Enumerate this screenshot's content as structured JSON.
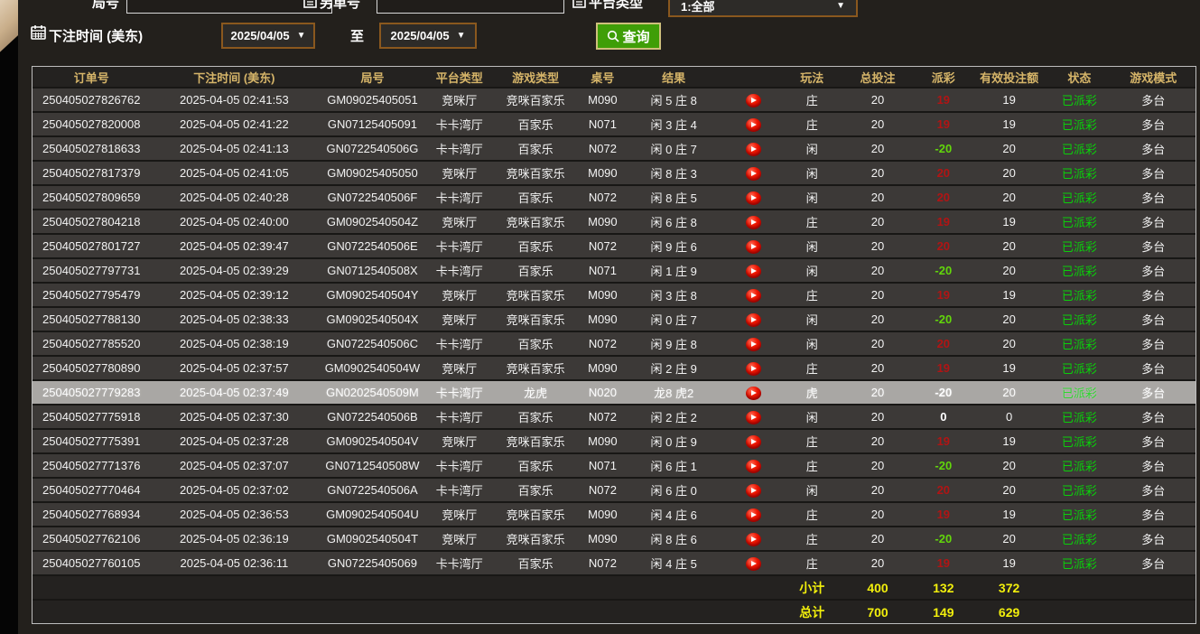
{
  "filters": {
    "round_label": "局号",
    "round_value": "",
    "order_label": "另单号",
    "order_value": "",
    "platform_label": "平台类型",
    "platform_value": "1:全部",
    "time_label": "下注时间 (美东)",
    "date_from": "2025/04/05",
    "to_label": "至",
    "date_to": "2025/04/05",
    "search_label": "查询"
  },
  "colors": {
    "header_text": "#d6b569",
    "payout_win_red": "#b11414",
    "payout_lose_green": "#62d60b",
    "status_green": "#0ad00a",
    "summary_yellow": "#f2ef0c",
    "search_button_green": "#3f9e07",
    "select_border_brown": "#8a581e",
    "highlight_row_gray": "#a9a7a4"
  },
  "table": {
    "headers": [
      "订单号",
      "下注时间 (美东)",
      "局号",
      "平台类型",
      "游戏类型",
      "桌号",
      "结果",
      "",
      "玩法",
      "总投注",
      "派彩",
      "有效投注额",
      "状态",
      "游戏模式"
    ],
    "rows": [
      {
        "order": "250405027826762",
        "time": "2025-04-05 02:41:53",
        "round": "GM09025405051",
        "hall": "竞咪厅",
        "game": "竞咪百家乐",
        "table": "M090",
        "result": "闲 5 庄 8",
        "bet": "庄",
        "total": "20",
        "payout": "19",
        "payout_color": "red",
        "valid": "19",
        "status": "已派彩",
        "mode": "多台",
        "highlight": false
      },
      {
        "order": "250405027820008",
        "time": "2025-04-05 02:41:22",
        "round": "GN07125405091",
        "hall": "卡卡湾厅",
        "game": "百家乐",
        "table": "N071",
        "result": "闲 3 庄 4",
        "bet": "庄",
        "total": "20",
        "payout": "19",
        "payout_color": "red",
        "valid": "19",
        "status": "已派彩",
        "mode": "多台",
        "highlight": false
      },
      {
        "order": "250405027818633",
        "time": "2025-04-05 02:41:13",
        "round": "GN0722540506G",
        "hall": "卡卡湾厅",
        "game": "百家乐",
        "table": "N072",
        "result": "闲 0 庄 7",
        "bet": "闲",
        "total": "20",
        "payout": "-20",
        "payout_color": "green",
        "valid": "20",
        "status": "已派彩",
        "mode": "多台",
        "highlight": false
      },
      {
        "order": "250405027817379",
        "time": "2025-04-05 02:41:05",
        "round": "GM09025405050",
        "hall": "竞咪厅",
        "game": "竞咪百家乐",
        "table": "M090",
        "result": "闲 8 庄 3",
        "bet": "闲",
        "total": "20",
        "payout": "20",
        "payout_color": "red",
        "valid": "20",
        "status": "已派彩",
        "mode": "多台",
        "highlight": false
      },
      {
        "order": "250405027809659",
        "time": "2025-04-05 02:40:28",
        "round": "GN0722540506F",
        "hall": "卡卡湾厅",
        "game": "百家乐",
        "table": "N072",
        "result": "闲 8 庄 5",
        "bet": "闲",
        "total": "20",
        "payout": "20",
        "payout_color": "red",
        "valid": "20",
        "status": "已派彩",
        "mode": "多台",
        "highlight": false
      },
      {
        "order": "250405027804218",
        "time": "2025-04-05 02:40:00",
        "round": "GM0902540504Z",
        "hall": "竞咪厅",
        "game": "竞咪百家乐",
        "table": "M090",
        "result": "闲 6 庄 8",
        "bet": "庄",
        "total": "20",
        "payout": "19",
        "payout_color": "red",
        "valid": "19",
        "status": "已派彩",
        "mode": "多台",
        "highlight": false
      },
      {
        "order": "250405027801727",
        "time": "2025-04-05 02:39:47",
        "round": "GN0722540506E",
        "hall": "卡卡湾厅",
        "game": "百家乐",
        "table": "N072",
        "result": "闲 9 庄 6",
        "bet": "闲",
        "total": "20",
        "payout": "20",
        "payout_color": "red",
        "valid": "20",
        "status": "已派彩",
        "mode": "多台",
        "highlight": false
      },
      {
        "order": "250405027797731",
        "time": "2025-04-05 02:39:29",
        "round": "GN0712540508X",
        "hall": "卡卡湾厅",
        "game": "百家乐",
        "table": "N071",
        "result": "闲 1 庄 9",
        "bet": "闲",
        "total": "20",
        "payout": "-20",
        "payout_color": "green",
        "valid": "20",
        "status": "已派彩",
        "mode": "多台",
        "highlight": false
      },
      {
        "order": "250405027795479",
        "time": "2025-04-05 02:39:12",
        "round": "GM0902540504Y",
        "hall": "竞咪厅",
        "game": "竞咪百家乐",
        "table": "M090",
        "result": "闲 3 庄 8",
        "bet": "庄",
        "total": "20",
        "payout": "19",
        "payout_color": "red",
        "valid": "19",
        "status": "已派彩",
        "mode": "多台",
        "highlight": false
      },
      {
        "order": "250405027788130",
        "time": "2025-04-05 02:38:33",
        "round": "GM0902540504X",
        "hall": "竞咪厅",
        "game": "竞咪百家乐",
        "table": "M090",
        "result": "闲 0 庄 7",
        "bet": "闲",
        "total": "20",
        "payout": "-20",
        "payout_color": "green",
        "valid": "20",
        "status": "已派彩",
        "mode": "多台",
        "highlight": false
      },
      {
        "order": "250405027785520",
        "time": "2025-04-05 02:38:19",
        "round": "GN0722540506C",
        "hall": "卡卡湾厅",
        "game": "百家乐",
        "table": "N072",
        "result": "闲 9 庄 8",
        "bet": "闲",
        "total": "20",
        "payout": "20",
        "payout_color": "red",
        "valid": "20",
        "status": "已派彩",
        "mode": "多台",
        "highlight": false
      },
      {
        "order": "250405027780890",
        "time": "2025-04-05 02:37:57",
        "round": "GM0902540504W",
        "hall": "竞咪厅",
        "game": "竞咪百家乐",
        "table": "M090",
        "result": "闲 2 庄 9",
        "bet": "庄",
        "total": "20",
        "payout": "19",
        "payout_color": "red",
        "valid": "19",
        "status": "已派彩",
        "mode": "多台",
        "highlight": false
      },
      {
        "order": "250405027779283",
        "time": "2025-04-05 02:37:49",
        "round": "GN0202540509M",
        "hall": "卡卡湾厅",
        "game": "龙虎",
        "table": "N020",
        "result": "龙8 虎2",
        "bet": "虎",
        "total": "20",
        "payout": "-20",
        "payout_color": "green",
        "valid": "20",
        "status": "已派彩",
        "mode": "多台",
        "highlight": true
      },
      {
        "order": "250405027775918",
        "time": "2025-04-05 02:37:30",
        "round": "GN0722540506B",
        "hall": "卡卡湾厅",
        "game": "百家乐",
        "table": "N072",
        "result": "闲 2 庄 2",
        "bet": "闲",
        "total": "20",
        "payout": "0",
        "payout_color": "white",
        "valid": "0",
        "status": "已派彩",
        "mode": "多台",
        "highlight": false
      },
      {
        "order": "250405027775391",
        "time": "2025-04-05 02:37:28",
        "round": "GM0902540504V",
        "hall": "竞咪厅",
        "game": "竞咪百家乐",
        "table": "M090",
        "result": "闲 0 庄 9",
        "bet": "庄",
        "total": "20",
        "payout": "19",
        "payout_color": "red",
        "valid": "19",
        "status": "已派彩",
        "mode": "多台",
        "highlight": false
      },
      {
        "order": "250405027771376",
        "time": "2025-04-05 02:37:07",
        "round": "GN0712540508W",
        "hall": "卡卡湾厅",
        "game": "百家乐",
        "table": "N071",
        "result": "闲 6 庄 1",
        "bet": "庄",
        "total": "20",
        "payout": "-20",
        "payout_color": "green",
        "valid": "20",
        "status": "已派彩",
        "mode": "多台",
        "highlight": false
      },
      {
        "order": "250405027770464",
        "time": "2025-04-05 02:37:02",
        "round": "GN0722540506A",
        "hall": "卡卡湾厅",
        "game": "百家乐",
        "table": "N072",
        "result": "闲 6 庄 0",
        "bet": "闲",
        "total": "20",
        "payout": "20",
        "payout_color": "red",
        "valid": "20",
        "status": "已派彩",
        "mode": "多台",
        "highlight": false
      },
      {
        "order": "250405027768934",
        "time": "2025-04-05 02:36:53",
        "round": "GM0902540504U",
        "hall": "竞咪厅",
        "game": "竞咪百家乐",
        "table": "M090",
        "result": "闲 4 庄 6",
        "bet": "庄",
        "total": "20",
        "payout": "19",
        "payout_color": "red",
        "valid": "19",
        "status": "已派彩",
        "mode": "多台",
        "highlight": false
      },
      {
        "order": "250405027762106",
        "time": "2025-04-05 02:36:19",
        "round": "GM0902540504T",
        "hall": "竞咪厅",
        "game": "竞咪百家乐",
        "table": "M090",
        "result": "闲 8 庄 6",
        "bet": "庄",
        "total": "20",
        "payout": "-20",
        "payout_color": "green",
        "valid": "20",
        "status": "已派彩",
        "mode": "多台",
        "highlight": false
      },
      {
        "order": "250405027760105",
        "time": "2025-04-05 02:36:11",
        "round": "GN07225405069",
        "hall": "卡卡湾厅",
        "game": "百家乐",
        "table": "N072",
        "result": "闲 4 庄 5",
        "bet": "庄",
        "total": "20",
        "payout": "19",
        "payout_color": "red",
        "valid": "19",
        "status": "已派彩",
        "mode": "多台",
        "highlight": false
      }
    ],
    "subtotal": {
      "label": "小计",
      "total_bet": "400",
      "payout": "132",
      "valid_bet": "372"
    },
    "total": {
      "label": "总计",
      "total_bet": "700",
      "payout": "149",
      "valid_bet": "629"
    }
  }
}
